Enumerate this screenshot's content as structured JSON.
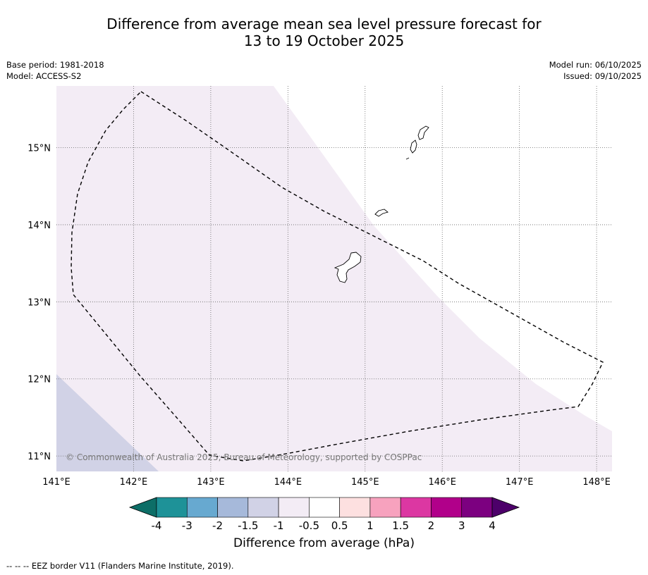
{
  "title": {
    "line1": "Difference from average mean sea level pressure forecast for",
    "line2": "13 to 19 October 2025"
  },
  "meta": {
    "base_period": "Base period: 1981-2018",
    "model": "Model: ACCESS-S2",
    "model_run": "Model run: 06/10/2025",
    "issued": "Issued: 09/10/2025"
  },
  "map": {
    "copyright": "© Commonwealth of Australia 2025, Bureau of Meteorology, supported by COSPPac",
    "lon_ticks": [
      "141°E",
      "142°E",
      "143°E",
      "144°E",
      "145°E",
      "146°E",
      "147°E",
      "148°E"
    ],
    "lat_ticks": [
      "15°N",
      "14°N",
      "13°N",
      "12°N",
      "11°N"
    ],
    "lon_range": [
      141.0,
      148.2
    ],
    "lat_range": [
      10.8,
      15.8
    ],
    "lon_tick_values": [
      141,
      142,
      143,
      144,
      145,
      146,
      147,
      148
    ],
    "lat_tick_values": [
      15,
      14,
      13,
      12,
      11
    ],
    "regions": [
      {
        "category": "-1 to -0.5",
        "color": "#f3ecf5"
      },
      {
        "category": "-1.5 to -1",
        "color": "#d1d2e6"
      },
      {
        "category": "-0.5 to 0.5",
        "color": "#ffffff"
      }
    ]
  },
  "colorbar": {
    "title": "Difference from average (hPa)",
    "labels": [
      "-4",
      "-3",
      "-2",
      "-1.5",
      "-1",
      "-0.5",
      "0.5",
      "1",
      "1.5",
      "2",
      "3",
      "4"
    ],
    "colors": [
      "#0d6e67",
      "#1e9298",
      "#67a9d0",
      "#a6b9da",
      "#d1d2e6",
      "#f3ecf5",
      "#ffffff",
      "#fde0e0",
      "#f7a2be",
      "#dc37a2",
      "#b1008a",
      "#7c0080",
      "#4d006a"
    ]
  },
  "footnote": "--  --  -- EEZ border V11 (Flanders Marine Institute, 2019)."
}
